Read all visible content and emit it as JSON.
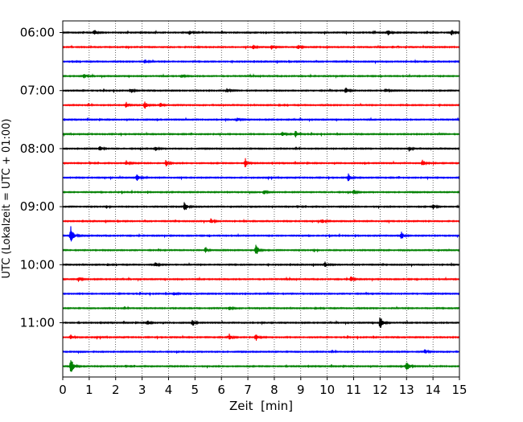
{
  "chart_data": {
    "type": "line",
    "title": "",
    "xlabel": "Zeit  [min]",
    "ylabel": "UTC (Lokalzeit = UTC + 01:00)",
    "xlim": [
      0,
      15
    ],
    "x_ticks": [
      "0",
      "1",
      "2",
      "3",
      "4",
      "5",
      "6",
      "7",
      "8",
      "9",
      "10",
      "11",
      "12",
      "13",
      "14",
      "15"
    ],
    "y_ticks": [
      "06:00",
      "07:00",
      "08:00",
      "09:00",
      "10:00",
      "11:00"
    ],
    "grid": "vertical-dotted",
    "trace_interval_minutes": 15,
    "trace_color_cycle": [
      "#000000",
      "#ff0000",
      "#0000ff",
      "#008000"
    ],
    "traces": [
      {
        "start": "06:00",
        "color": "#000000",
        "events": [
          [
            1.2,
            0.35
          ],
          [
            4.8,
            0.3
          ],
          [
            12.3,
            0.35
          ],
          [
            14.7,
            0.45
          ]
        ]
      },
      {
        "start": "06:15",
        "color": "#ff0000",
        "events": [
          [
            7.2,
            0.35
          ],
          [
            7.9,
            0.35
          ],
          [
            8.9,
            0.3
          ]
        ]
      },
      {
        "start": "06:30",
        "color": "#0000ff",
        "events": [
          [
            3.1,
            0.35
          ]
        ]
      },
      {
        "start": "06:45",
        "color": "#008000",
        "events": [
          [
            0.8,
            0.35
          ],
          [
            4.5,
            0.25
          ]
        ]
      },
      {
        "start": "07:00",
        "color": "#000000",
        "events": [
          [
            2.6,
            0.3
          ],
          [
            6.2,
            0.3
          ],
          [
            10.7,
            0.45
          ],
          [
            12.2,
            0.3
          ]
        ]
      },
      {
        "start": "07:15",
        "color": "#ff0000",
        "events": [
          [
            2.4,
            0.4
          ],
          [
            3.1,
            0.55
          ],
          [
            3.7,
            0.35
          ]
        ]
      },
      {
        "start": "07:30",
        "color": "#0000ff",
        "events": [
          [
            6.6,
            0.25
          ]
        ]
      },
      {
        "start": "07:45",
        "color": "#008000",
        "events": [
          [
            8.3,
            0.35
          ],
          [
            8.8,
            0.55
          ]
        ]
      },
      {
        "start": "08:00",
        "color": "#000000",
        "events": [
          [
            1.4,
            0.4
          ],
          [
            3.5,
            0.35
          ],
          [
            13.1,
            0.35
          ]
        ]
      },
      {
        "start": "08:15",
        "color": "#ff0000",
        "events": [
          [
            2.4,
            0.35
          ],
          [
            3.9,
            0.5
          ],
          [
            6.9,
            0.75
          ],
          [
            13.6,
            0.45
          ]
        ]
      },
      {
        "start": "08:30",
        "color": "#0000ff",
        "events": [
          [
            2.8,
            0.55
          ],
          [
            10.8,
            0.55
          ]
        ]
      },
      {
        "start": "08:45",
        "color": "#008000",
        "events": [
          [
            7.6,
            0.35
          ],
          [
            11.0,
            0.3
          ]
        ]
      },
      {
        "start": "09:00",
        "color": "#000000",
        "events": [
          [
            4.6,
            0.85
          ],
          [
            14.0,
            0.35
          ]
        ]
      },
      {
        "start": "09:15",
        "color": "#ff0000",
        "events": [
          [
            5.6,
            0.35
          ],
          [
            9.8,
            0.35
          ]
        ]
      },
      {
        "start": "09:30",
        "color": "#0000ff",
        "events": [
          [
            0.3,
            1.4
          ],
          [
            12.8,
            0.6
          ]
        ]
      },
      {
        "start": "09:45",
        "color": "#008000",
        "events": [
          [
            5.4,
            0.45
          ],
          [
            7.3,
            0.85
          ]
        ]
      },
      {
        "start": "10:00",
        "color": "#000000",
        "events": [
          [
            3.5,
            0.3
          ],
          [
            9.9,
            0.35
          ]
        ]
      },
      {
        "start": "10:15",
        "color": "#ff0000",
        "events": [
          [
            0.6,
            0.35
          ],
          [
            10.9,
            0.35
          ]
        ]
      },
      {
        "start": "10:30",
        "color": "#0000ff",
        "events": [
          [
            4.2,
            0.25
          ]
        ]
      },
      {
        "start": "10:45",
        "color": "#008000",
        "events": [
          [
            6.3,
            0.3
          ]
        ]
      },
      {
        "start": "11:00",
        "color": "#000000",
        "events": [
          [
            3.2,
            0.4
          ],
          [
            4.9,
            0.4
          ],
          [
            12.0,
            1.0
          ]
        ]
      },
      {
        "start": "11:15",
        "color": "#ff0000",
        "events": [
          [
            0.3,
            0.4
          ],
          [
            6.3,
            0.5
          ],
          [
            7.3,
            0.5
          ]
        ]
      },
      {
        "start": "11:30",
        "color": "#0000ff",
        "events": [
          [
            13.7,
            0.3
          ]
        ]
      },
      {
        "start": "11:45",
        "color": "#008000",
        "events": [
          [
            0.3,
            1.3
          ],
          [
            13.0,
            0.9
          ]
        ]
      }
    ]
  }
}
